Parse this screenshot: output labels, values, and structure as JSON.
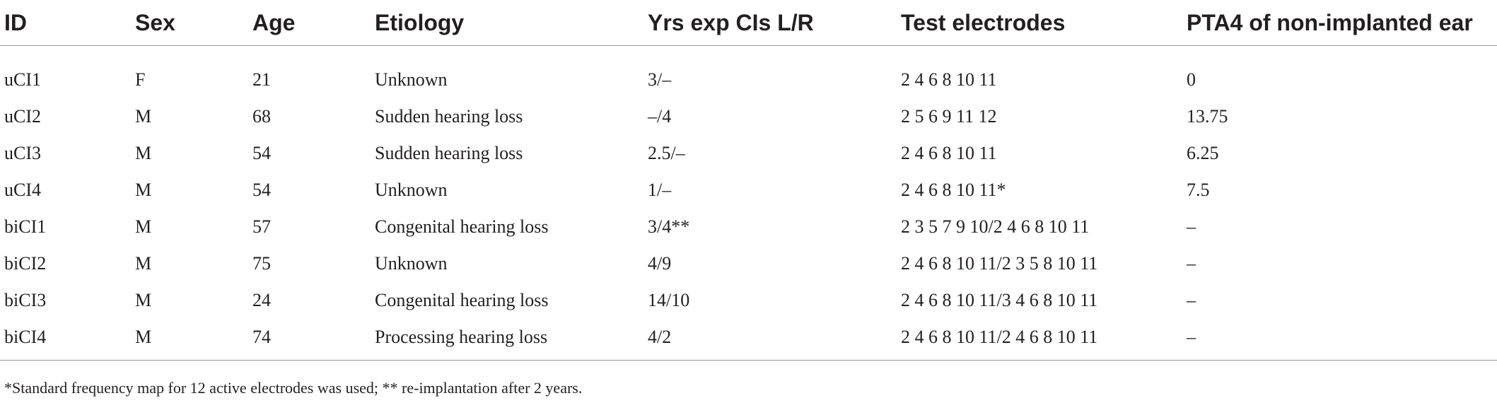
{
  "table": {
    "headers": [
      "ID",
      "Sex",
      "Age",
      "Etiology",
      "Yrs exp CIs L/R",
      "Test electrodes",
      "PTA4 of non-implanted ear"
    ],
    "rows": [
      [
        "uCI1",
        "F",
        "21",
        "Unknown",
        "3/–",
        "2 4 6 8 10 11",
        "0"
      ],
      [
        "uCI2",
        "M",
        "68",
        "Sudden hearing loss",
        " –/4",
        "2 5 6 9 11 12",
        "13.75"
      ],
      [
        "uCI3",
        "M",
        "54",
        "Sudden hearing loss",
        "2.5/–",
        "2 4 6 8 10 11",
        "6.25"
      ],
      [
        "uCI4",
        "M",
        "54",
        "Unknown",
        "1/–",
        "2 4 6 8 10 11*",
        "7.5"
      ],
      [
        "biCI1",
        "M",
        "57",
        "Congenital hearing loss",
        "3/4**",
        "2 3 5 7 9 10/2 4 6 8 10 11",
        " –"
      ],
      [
        "biCI2",
        "M",
        "75",
        "Unknown",
        "4/9",
        "2 4 6 8 10 11/2 3 5 8 10 11",
        " –"
      ],
      [
        "biCI3",
        "M",
        "24",
        "Congenital hearing loss",
        "14/10",
        "2 4 6 8 10 11/3 4 6 8 10 11",
        "–"
      ],
      [
        "biCI4",
        "M",
        "74",
        "Processing hearing loss",
        "4/2",
        "2 4 6 8 10 11/2 4 6 8 10 11",
        " –"
      ]
    ]
  },
  "footnote": "*Standard frequency map for 12 active electrodes was used; ** re-implantation after 2 years."
}
